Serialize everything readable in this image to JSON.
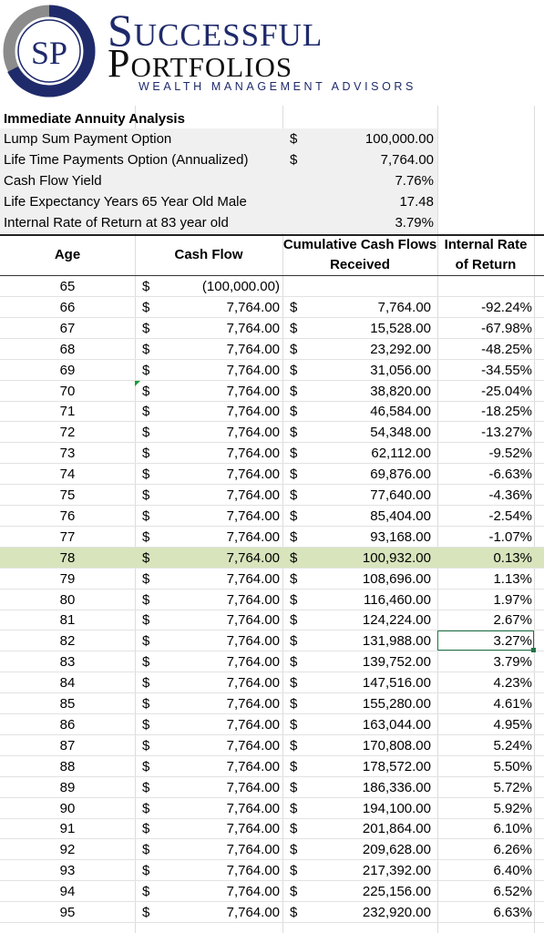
{
  "brand": {
    "monogram": "SP",
    "name_line1": "Successful",
    "name_line2": "Portfolios",
    "tagline": "WEALTH MANAGEMENT ADVISORS"
  },
  "summary": {
    "title": "Immediate Annuity Analysis",
    "rows": [
      {
        "label": "Lump Sum Payment Option",
        "dollar": "$",
        "value": "100,000.00"
      },
      {
        "label": "Life Time Payments Option (Annualized)",
        "dollar": "$",
        "value": "7,764.00"
      },
      {
        "label": "Cash Flow Yield",
        "dollar": "",
        "value": "7.76%"
      },
      {
        "label": "Life Expectancy Years 65 Year Old Male",
        "dollar": "",
        "value": "17.48"
      },
      {
        "label": "Internal Rate of Return at 83 year old",
        "dollar": "",
        "value": "3.79%"
      }
    ]
  },
  "table": {
    "headers": {
      "age": "Age",
      "cash_flow": "Cash Flow",
      "cumulative": "Cumulative Cash Flows Received",
      "irr": "Internal Rate of Return"
    },
    "highlight_age": "78",
    "selected_age": "82",
    "rows": [
      {
        "age": "65",
        "d1": "$",
        "cf": "(100,000.00)",
        "d2": "",
        "cum": "",
        "irr": ""
      },
      {
        "age": "66",
        "d1": "$",
        "cf": "7,764.00",
        "d2": "$",
        "cum": "7,764.00",
        "irr": "-92.24%"
      },
      {
        "age": "67",
        "d1": "$",
        "cf": "7,764.00",
        "d2": "$",
        "cum": "15,528.00",
        "irr": "-67.98%"
      },
      {
        "age": "68",
        "d1": "$",
        "cf": "7,764.00",
        "d2": "$",
        "cum": "23,292.00",
        "irr": "-48.25%"
      },
      {
        "age": "69",
        "d1": "$",
        "cf": "7,764.00",
        "d2": "$",
        "cum": "31,056.00",
        "irr": "-34.55%"
      },
      {
        "age": "70",
        "d1": "$",
        "cf": "7,764.00",
        "d2": "$",
        "cum": "38,820.00",
        "irr": "-25.04%"
      },
      {
        "age": "71",
        "d1": "$",
        "cf": "7,764.00",
        "d2": "$",
        "cum": "46,584.00",
        "irr": "-18.25%"
      },
      {
        "age": "72",
        "d1": "$",
        "cf": "7,764.00",
        "d2": "$",
        "cum": "54,348.00",
        "irr": "-13.27%"
      },
      {
        "age": "73",
        "d1": "$",
        "cf": "7,764.00",
        "d2": "$",
        "cum": "62,112.00",
        "irr": "-9.52%"
      },
      {
        "age": "74",
        "d1": "$",
        "cf": "7,764.00",
        "d2": "$",
        "cum": "69,876.00",
        "irr": "-6.63%"
      },
      {
        "age": "75",
        "d1": "$",
        "cf": "7,764.00",
        "d2": "$",
        "cum": "77,640.00",
        "irr": "-4.36%"
      },
      {
        "age": "76",
        "d1": "$",
        "cf": "7,764.00",
        "d2": "$",
        "cum": "85,404.00",
        "irr": "-2.54%"
      },
      {
        "age": "77",
        "d1": "$",
        "cf": "7,764.00",
        "d2": "$",
        "cum": "93,168.00",
        "irr": "-1.07%"
      },
      {
        "age": "78",
        "d1": "$",
        "cf": "7,764.00",
        "d2": "$",
        "cum": "100,932.00",
        "irr": "0.13%"
      },
      {
        "age": "79",
        "d1": "$",
        "cf": "7,764.00",
        "d2": "$",
        "cum": "108,696.00",
        "irr": "1.13%"
      },
      {
        "age": "80",
        "d1": "$",
        "cf": "7,764.00",
        "d2": "$",
        "cum": "116,460.00",
        "irr": "1.97%"
      },
      {
        "age": "81",
        "d1": "$",
        "cf": "7,764.00",
        "d2": "$",
        "cum": "124,224.00",
        "irr": "2.67%"
      },
      {
        "age": "82",
        "d1": "$",
        "cf": "7,764.00",
        "d2": "$",
        "cum": "131,988.00",
        "irr": "3.27%"
      },
      {
        "age": "83",
        "d1": "$",
        "cf": "7,764.00",
        "d2": "$",
        "cum": "139,752.00",
        "irr": "3.79%"
      },
      {
        "age": "84",
        "d1": "$",
        "cf": "7,764.00",
        "d2": "$",
        "cum": "147,516.00",
        "irr": "4.23%"
      },
      {
        "age": "85",
        "d1": "$",
        "cf": "7,764.00",
        "d2": "$",
        "cum": "155,280.00",
        "irr": "4.61%"
      },
      {
        "age": "86",
        "d1": "$",
        "cf": "7,764.00",
        "d2": "$",
        "cum": "163,044.00",
        "irr": "4.95%"
      },
      {
        "age": "87",
        "d1": "$",
        "cf": "7,764.00",
        "d2": "$",
        "cum": "170,808.00",
        "irr": "5.24%"
      },
      {
        "age": "88",
        "d1": "$",
        "cf": "7,764.00",
        "d2": "$",
        "cum": "178,572.00",
        "irr": "5.50%"
      },
      {
        "age": "89",
        "d1": "$",
        "cf": "7,764.00",
        "d2": "$",
        "cum": "186,336.00",
        "irr": "5.72%"
      },
      {
        "age": "90",
        "d1": "$",
        "cf": "7,764.00",
        "d2": "$",
        "cum": "194,100.00",
        "irr": "5.92%"
      },
      {
        "age": "91",
        "d1": "$",
        "cf": "7,764.00",
        "d2": "$",
        "cum": "201,864.00",
        "irr": "6.10%"
      },
      {
        "age": "92",
        "d1": "$",
        "cf": "7,764.00",
        "d2": "$",
        "cum": "209,628.00",
        "irr": "6.26%"
      },
      {
        "age": "93",
        "d1": "$",
        "cf": "7,764.00",
        "d2": "$",
        "cum": "217,392.00",
        "irr": "6.40%"
      },
      {
        "age": "94",
        "d1": "$",
        "cf": "7,764.00",
        "d2": "$",
        "cum": "225,156.00",
        "irr": "6.52%"
      },
      {
        "age": "95",
        "d1": "$",
        "cf": "7,764.00",
        "d2": "$",
        "cum": "232,920.00",
        "irr": "6.63%"
      }
    ]
  },
  "colors": {
    "brand_navy": "#1f2a6b",
    "logo_gray": "#8c8c8c",
    "highlight_row": "#d8e4bc",
    "selection": "#217346",
    "summary_fill": "#f0f0f0"
  }
}
